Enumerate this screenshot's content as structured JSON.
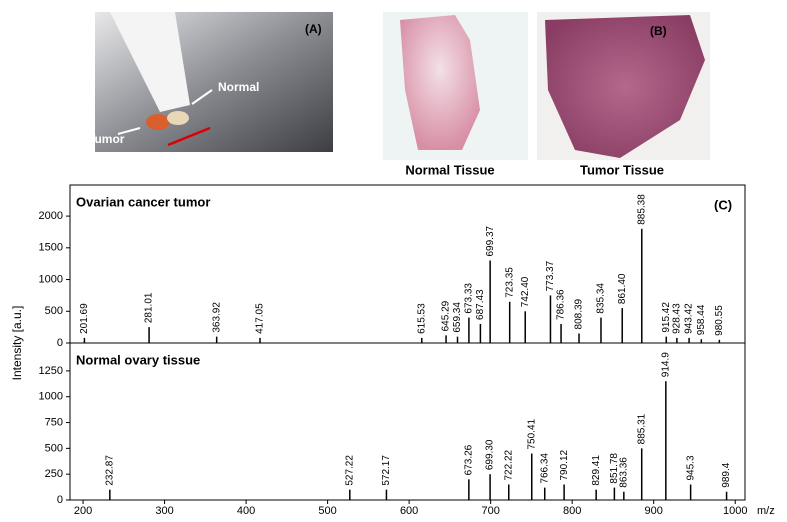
{
  "panel_a": {
    "label": "(A)",
    "tumor": "Tumor",
    "normal": "Normal"
  },
  "panel_b": {
    "label": "(B)",
    "normal_caption": "Normal Tissue",
    "tumor_caption": "Tumor Tissue"
  },
  "panel_c_label": "(C)",
  "chart_data": [
    {
      "type": "spectrum",
      "title": "Ovarian cancer tumor",
      "ylabel": "Intensity [a.u.]",
      "color": "#000000",
      "x": [
        201.69,
        281.01,
        363.92,
        417.05,
        615.53,
        645.29,
        659.34,
        673.33,
        687.43,
        699.37,
        723.35,
        742.4,
        773.37,
        786.36,
        808.39,
        835.34,
        861.4,
        885.38,
        915.42,
        928.43,
        943.42,
        958.44,
        980.55
      ],
      "x_labels": [
        "201.69",
        "281.01",
        "363.92",
        "417.05",
        "615.53",
        "645.29",
        "659.34",
        "673.33",
        "687.43",
        "699.37",
        "723.35",
        "742.40",
        "773.37",
        "786.36",
        "808.39",
        "835.34",
        "861.40",
        "885.38",
        "915.42",
        "928.43",
        "943.42",
        "958.44",
        "980.55"
      ],
      "values": [
        80,
        250,
        100,
        80,
        80,
        120,
        100,
        400,
        300,
        1300,
        650,
        500,
        750,
        300,
        150,
        400,
        550,
        1800,
        100,
        80,
        80,
        60,
        50
      ],
      "xlim": [
        184,
        1012
      ],
      "ylim": [
        0,
        2490
      ],
      "yticks": [
        0,
        500,
        1000,
        1500,
        2000
      ]
    },
    {
      "type": "spectrum",
      "title": "Normal ovary tissue",
      "xlabel": "m/z",
      "color": "#000000",
      "x": [
        232.87,
        527.22,
        572.17,
        673.26,
        699.3,
        722.22,
        750.41,
        766.34,
        790.12,
        829.41,
        851.78,
        863.36,
        885.31,
        914.9,
        945.3,
        989.4
      ],
      "x_labels": [
        "232.87",
        "527.22",
        "572.17",
        "673.26",
        "699.30",
        "722.22",
        "750.41",
        "766.34",
        "790.12",
        "829.41",
        "851.78",
        "863.36",
        "885.31",
        "914.9",
        "945.3",
        "989.4"
      ],
      "values": [
        100,
        100,
        100,
        200,
        250,
        150,
        450,
        120,
        150,
        100,
        120,
        80,
        500,
        1150,
        150,
        80
      ],
      "xlim": [
        184,
        1012
      ],
      "xticks": [
        200,
        300,
        400,
        500,
        600,
        700,
        800,
        900,
        1000
      ],
      "ylim": [
        0,
        1520
      ],
      "yticks": [
        0,
        250,
        500,
        750,
        1000,
        1250
      ]
    }
  ]
}
